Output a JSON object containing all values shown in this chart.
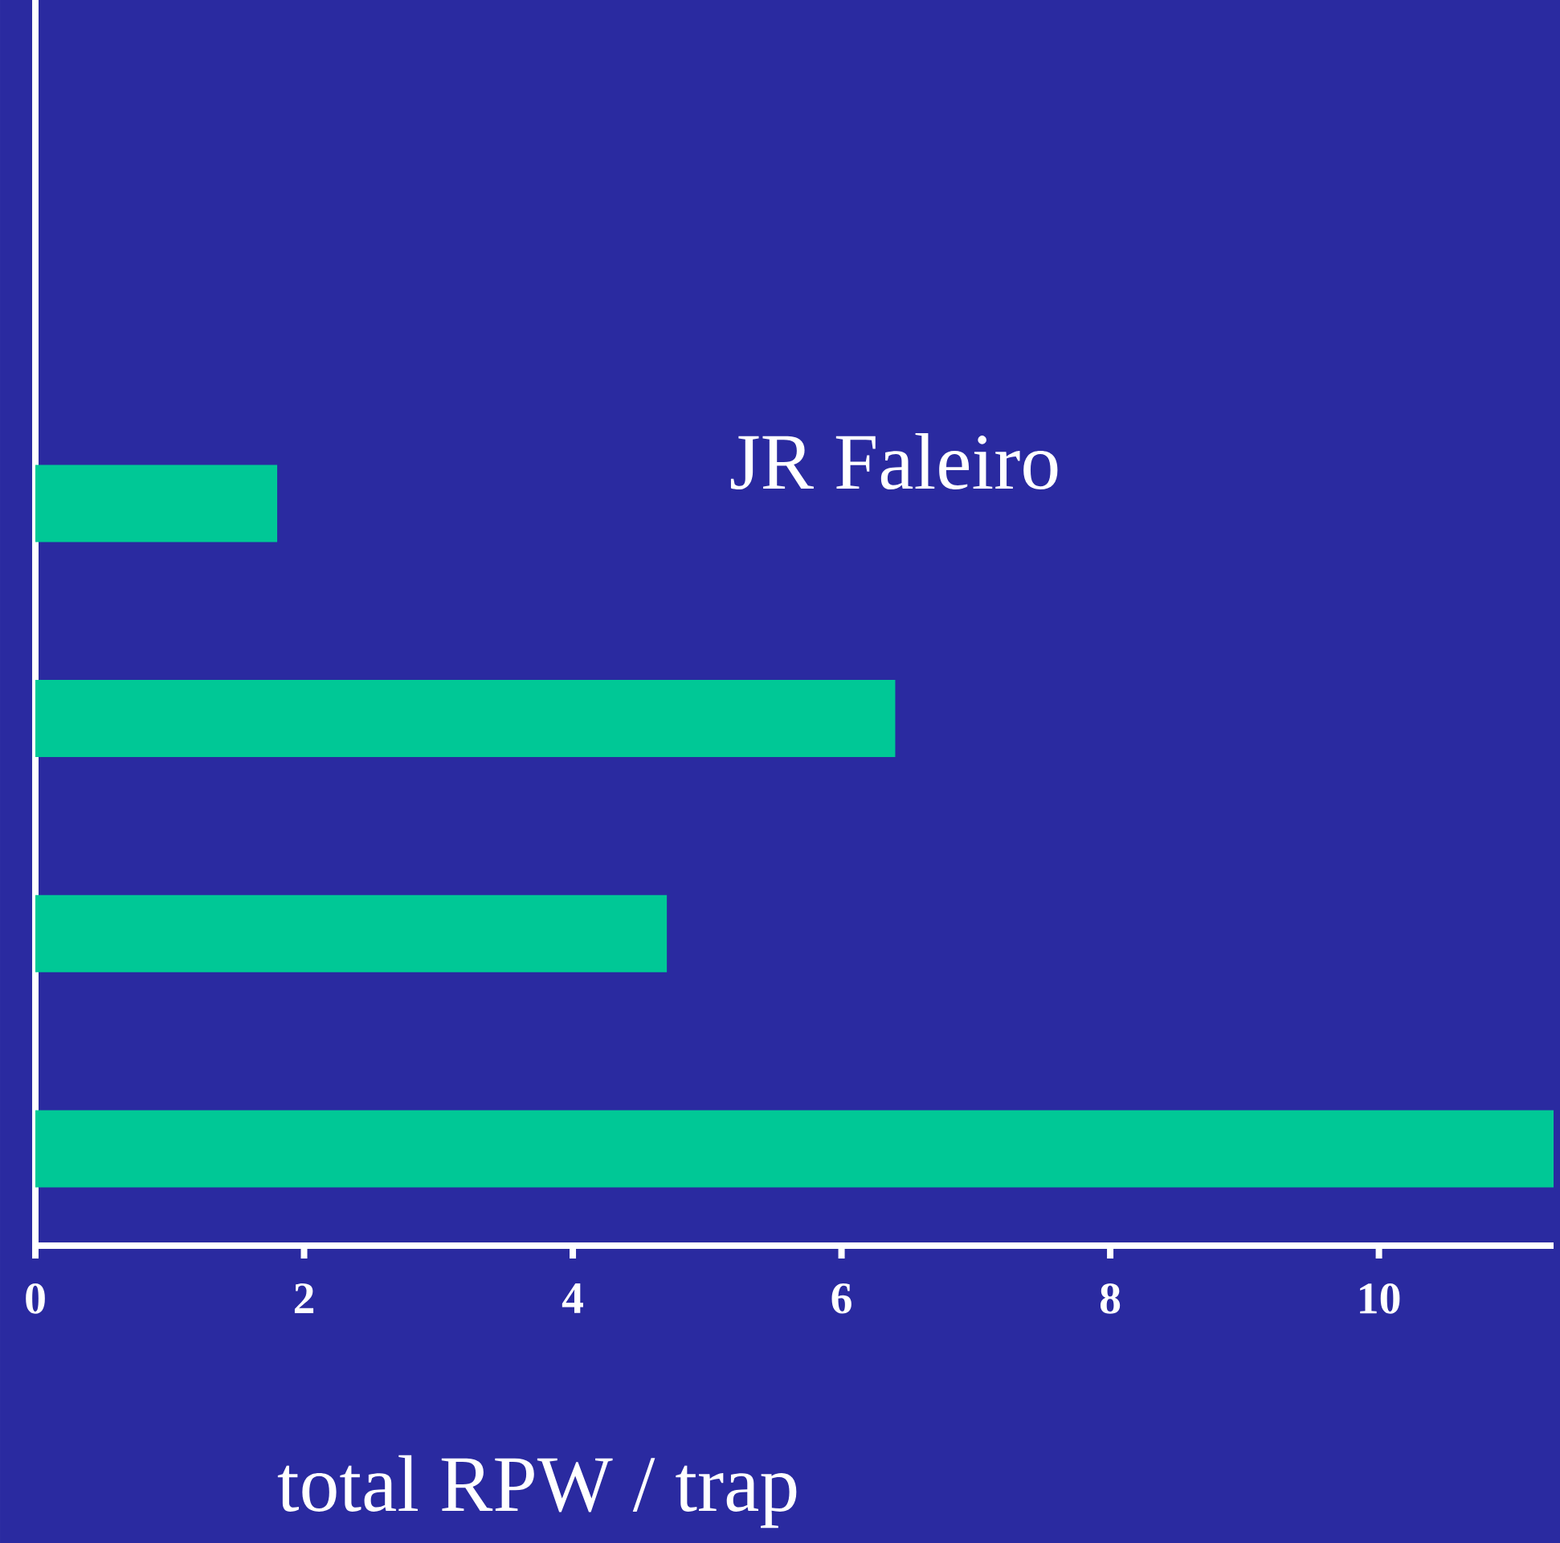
{
  "chart_data": {
    "type": "bar",
    "orientation": "horizontal",
    "categories": [
      null,
      null,
      null,
      null
    ],
    "values": [
      1.8,
      6.4,
      4.7,
      11.3
    ],
    "color": "#00c896",
    "xlim": [
      0,
      11.3
    ],
    "xticks": [
      0,
      2,
      4,
      6,
      8,
      10
    ],
    "xlabel": "total RPW / trap",
    "annotations": [
      "JR Faleiro"
    ]
  }
}
